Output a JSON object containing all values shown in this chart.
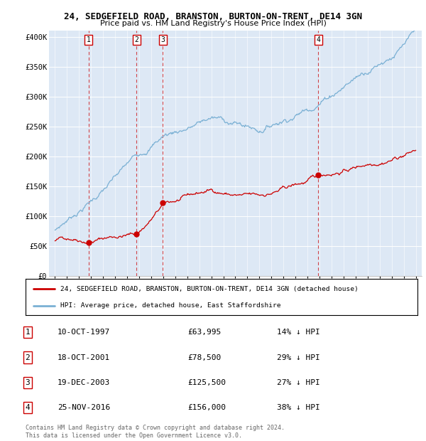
{
  "title_line1": "24, SEDGEFIELD ROAD, BRANSTON, BURTON-ON-TRENT, DE14 3GN",
  "title_line2": "Price paid vs. HM Land Registry's House Price Index (HPI)",
  "background_color": "#ffffff",
  "plot_bg_color": "#dde8f5",
  "grid_color": "#ffffff",
  "red_line_color": "#cc0000",
  "blue_line_color": "#7ab0d4",
  "transactions": [
    {
      "label": "1",
      "date_x": 1997.78,
      "price": 63995
    },
    {
      "label": "2",
      "date_x": 2001.79,
      "price": 78500
    },
    {
      "label": "3",
      "date_x": 2003.96,
      "price": 125500
    },
    {
      "label": "4",
      "date_x": 2016.9,
      "price": 156000
    }
  ],
  "vline_color": "#cc0000",
  "legend_entries": [
    "24, SEDGEFIELD ROAD, BRANSTON, BURTON-ON-TRENT, DE14 3GN (detached house)",
    "HPI: Average price, detached house, East Staffordshire"
  ],
  "table_rows": [
    [
      "1",
      "10-OCT-1997",
      "£63,995",
      "14% ↓ HPI"
    ],
    [
      "2",
      "18-OCT-2001",
      "£78,500",
      "29% ↓ HPI"
    ],
    [
      "3",
      "19-DEC-2003",
      "£125,500",
      "27% ↓ HPI"
    ],
    [
      "4",
      "25-NOV-2016",
      "£156,000",
      "38% ↓ HPI"
    ]
  ],
  "footer": "Contains HM Land Registry data © Crown copyright and database right 2024.\nThis data is licensed under the Open Government Licence v3.0.",
  "xlim": [
    1994.5,
    2025.5
  ],
  "ylim": [
    0,
    410000
  ],
  "yticks": [
    0,
    50000,
    100000,
    150000,
    200000,
    250000,
    300000,
    350000,
    400000
  ],
  "ytick_labels": [
    "£0",
    "£50K",
    "£100K",
    "£150K",
    "£200K",
    "£250K",
    "£300K",
    "£350K",
    "£400K"
  ],
  "xticks": [
    1995,
    1996,
    1997,
    1998,
    1999,
    2000,
    2001,
    2002,
    2003,
    2004,
    2005,
    2006,
    2007,
    2008,
    2009,
    2010,
    2011,
    2012,
    2013,
    2014,
    2015,
    2016,
    2017,
    2018,
    2019,
    2020,
    2021,
    2022,
    2023,
    2024,
    2025
  ]
}
